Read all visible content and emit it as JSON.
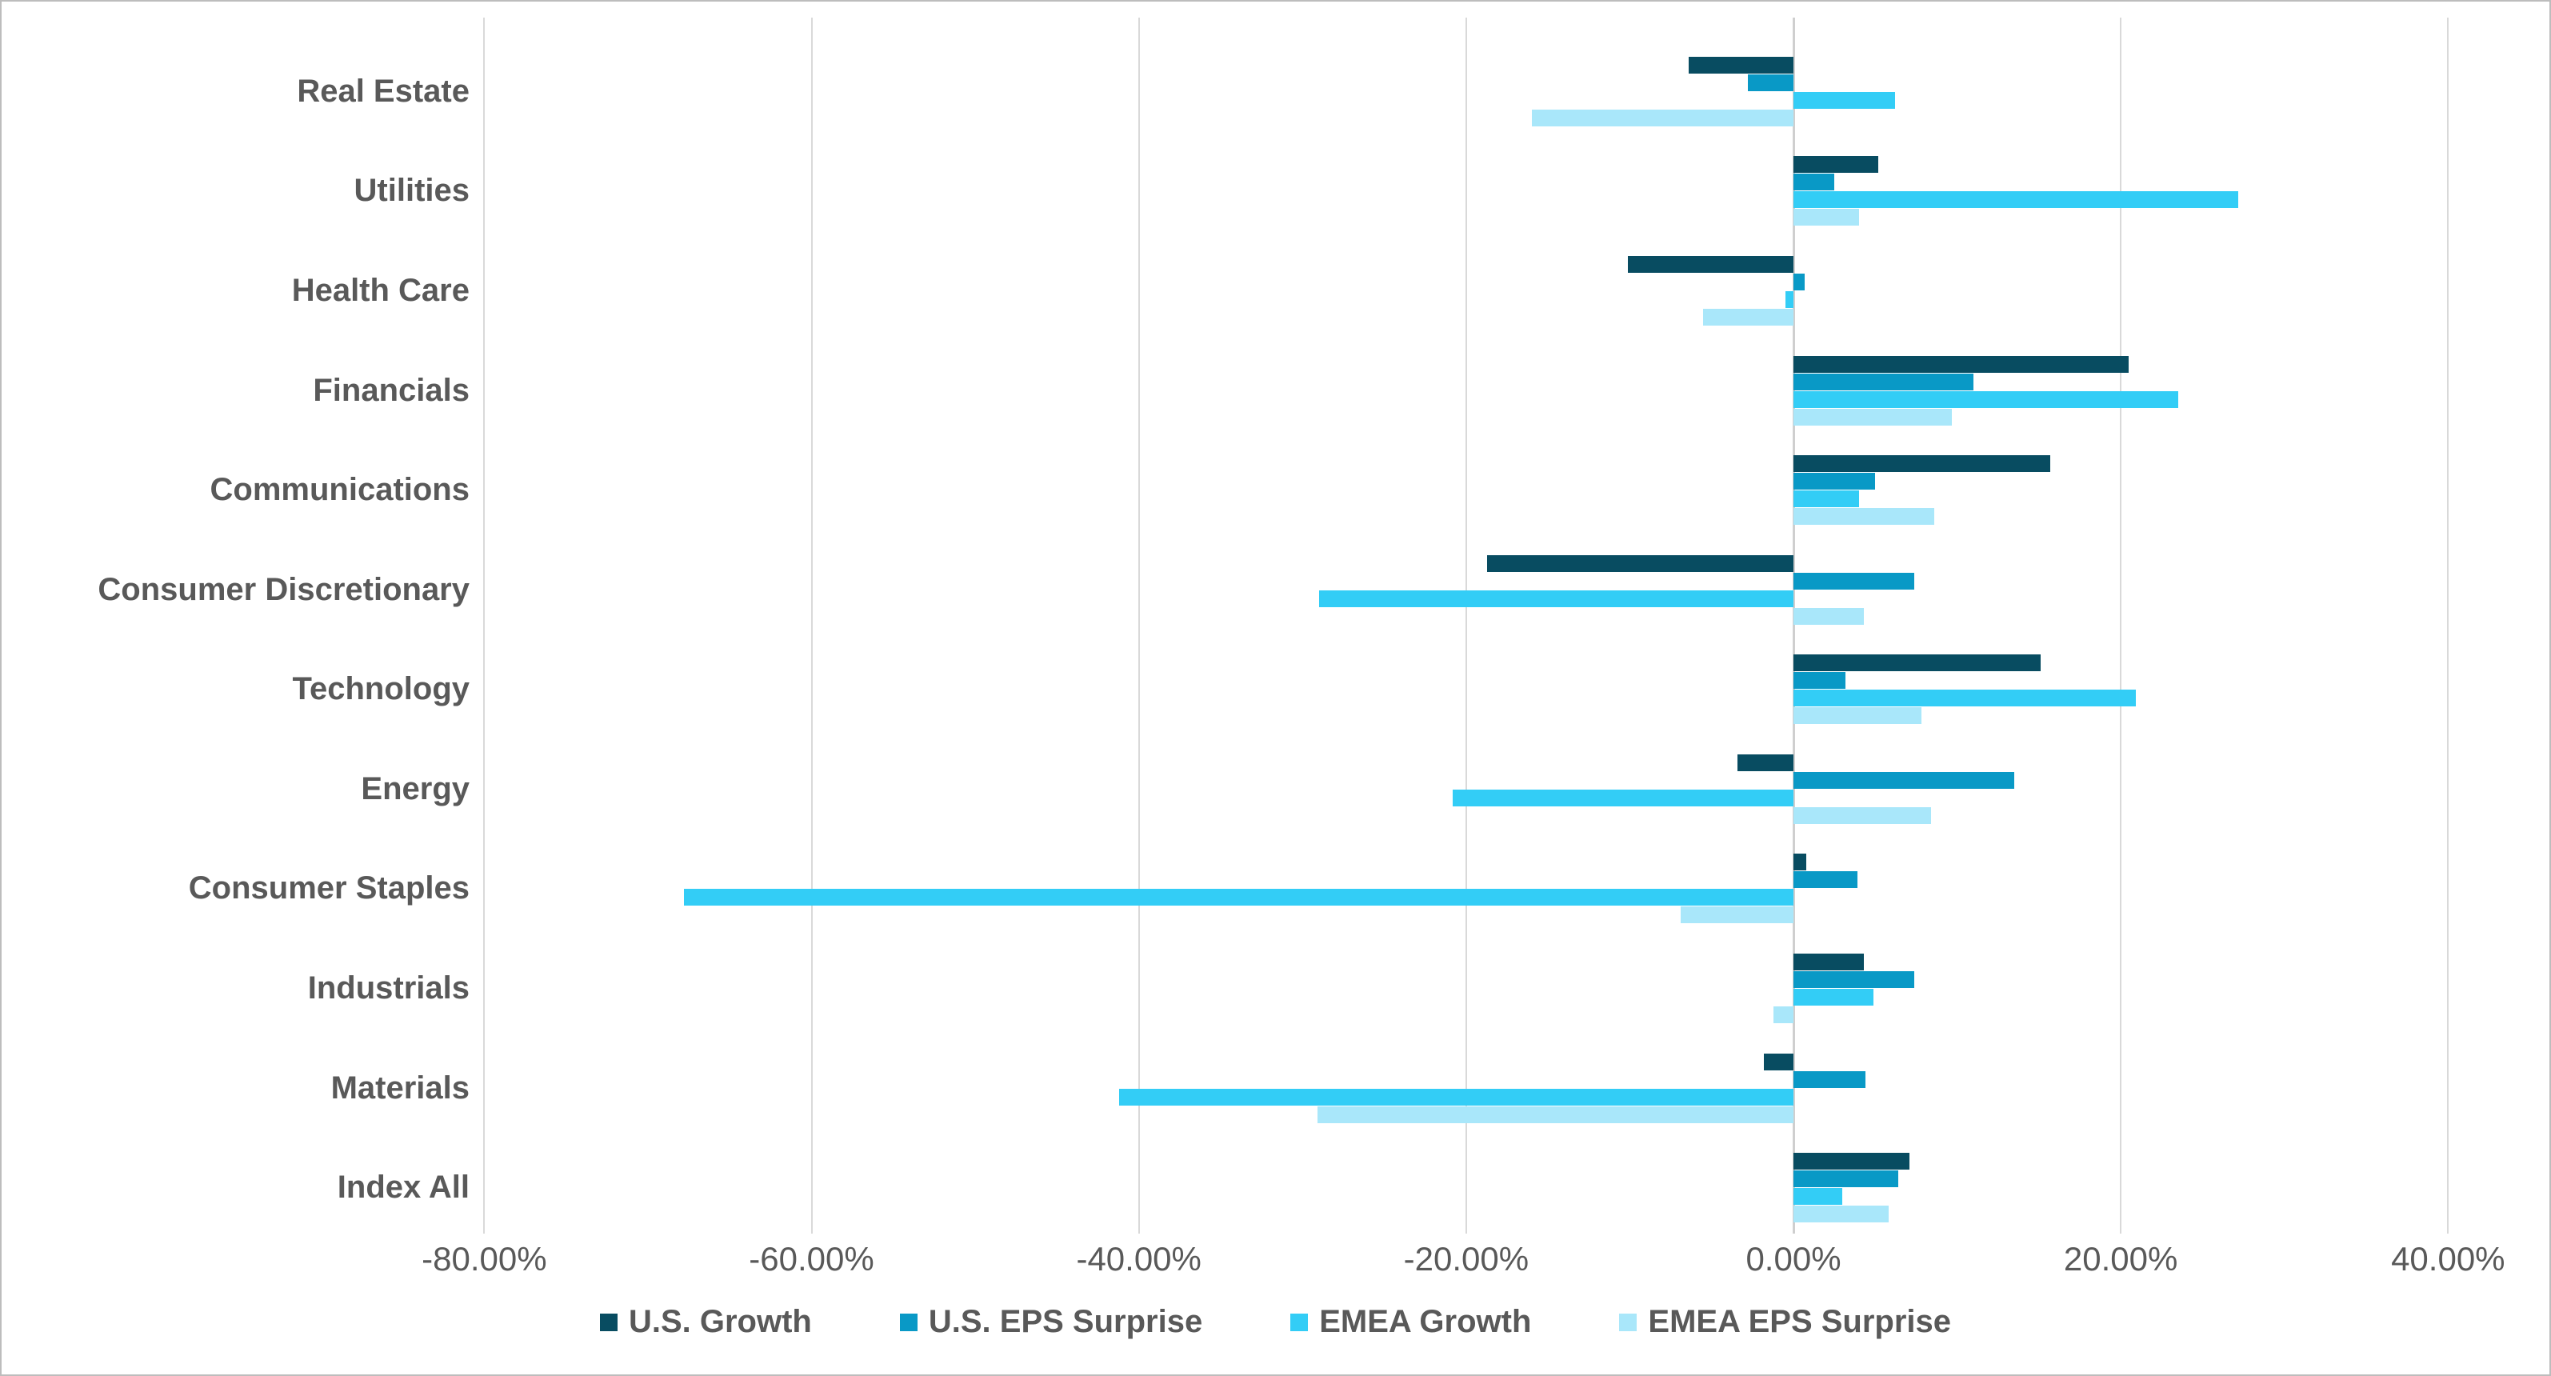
{
  "chart_data": {
    "type": "bar",
    "orientation": "horizontal",
    "title": "",
    "xlabel": "",
    "ylabel": "",
    "grid": true,
    "legend_position": "bottom",
    "categories": [
      "Real Estate",
      "Utilities",
      "Health Care",
      "Financials",
      "Communications",
      "Consumer Discretionary",
      "Technology",
      "Energy",
      "Consumer Staples",
      "Industrials",
      "Materials",
      "Index All"
    ],
    "series": [
      {
        "name": "U.S. Growth",
        "color": "#084C61",
        "values": [
          -6.4,
          5.2,
          -10.1,
          20.5,
          15.7,
          -18.7,
          15.1,
          -3.4,
          0.8,
          4.3,
          -1.8,
          7.1
        ]
      },
      {
        "name": "U.S. EPS Surprise",
        "color": "#0999C6",
        "values": [
          -2.8,
          2.5,
          0.7,
          11.0,
          5.0,
          7.4,
          3.2,
          13.5,
          3.9,
          7.4,
          4.4,
          6.4
        ]
      },
      {
        "name": "EMEA Growth",
        "color": "#33CDF6",
        "values": [
          6.2,
          27.2,
          -0.5,
          23.5,
          4.0,
          -29.0,
          20.9,
          -20.8,
          -67.8,
          4.9,
          -41.2,
          3.0
        ]
      },
      {
        "name": "EMEA EPS Surprise",
        "color": "#A9E7FA",
        "values": [
          -16.0,
          4.0,
          -5.5,
          9.7,
          8.6,
          4.3,
          7.8,
          8.4,
          -6.9,
          -1.2,
          -29.1,
          5.8
        ]
      }
    ],
    "x_axis": {
      "min": -80,
      "max": 40,
      "tick_step": 20,
      "tick_values": [
        -80,
        -60,
        -40,
        -20,
        0,
        20,
        40
      ],
      "tick_labels": [
        "-80.00%",
        "-60.00%",
        "-40.00%",
        "-20.00%",
        "0.00%",
        "20.00%",
        "40.00%"
      ],
      "unit": "percent"
    },
    "colors": {
      "gridline": "#d9d9d9",
      "zero_line": "#cfcfcf",
      "label_text": "#595959"
    }
  }
}
